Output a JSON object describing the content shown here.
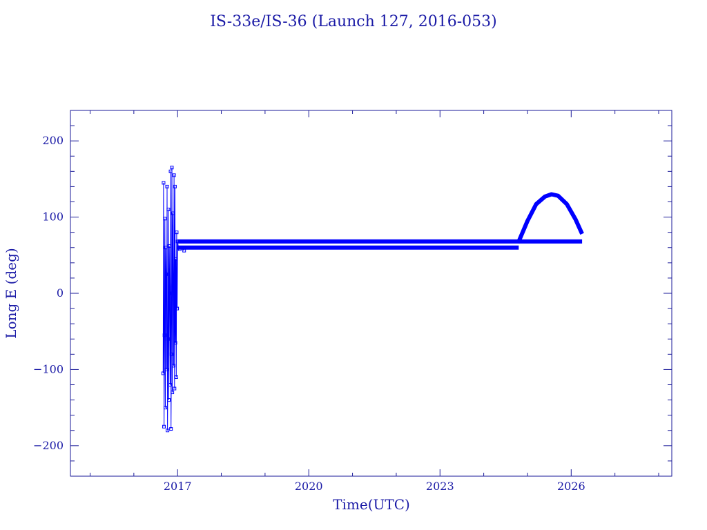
{
  "chart_data": {
    "type": "line",
    "title": "IS-33e/IS-36 (Launch 127, 2016-053)",
    "xlabel": "Time(UTC)",
    "ylabel": "Long E (deg)",
    "xlim": [
      2014.55,
      2028.3
    ],
    "ylim": [
      -240,
      240
    ],
    "x_ticks": [
      2017,
      2020,
      2023,
      2026
    ],
    "y_ticks": [
      200,
      100,
      0,
      -100,
      -200
    ],
    "grid": false,
    "legend": "none",
    "color": "#0000ff",
    "series": [
      {
        "x": [
          2016.67,
          2016.68,
          2016.69,
          2016.7,
          2016.71,
          2016.72,
          2016.73,
          2016.74,
          2016.75,
          2016.76,
          2016.77,
          2016.78,
          2016.79,
          2016.8,
          2016.81,
          2016.82,
          2016.83,
          2016.84,
          2016.85,
          2016.86,
          2016.87,
          2016.88,
          2016.89,
          2016.9,
          2016.91,
          2016.92,
          2016.93,
          2016.94,
          2016.95,
          2016.96,
          2016.97,
          2016.98,
          2016.99,
          2017.0,
          2017.02,
          2017.05,
          2017.1,
          2017.15
        ],
        "y": [
          -105,
          145,
          -175,
          -55,
          98,
          -150,
          60,
          25,
          -100,
          140,
          -180,
          -60,
          110,
          -140,
          62,
          0,
          -120,
          160,
          -178,
          -80,
          165,
          -130,
          105,
          10,
          -95,
          155,
          -125,
          140,
          -65,
          45,
          -110,
          80,
          -20,
          68,
          60,
          58,
          60,
          56
        ]
      },
      {
        "x": [
          2017.0,
          2024.8
        ],
        "y": [
          60,
          60
        ]
      },
      {
        "x": [
          2017.0,
          2024.8,
          2025.0,
          2025.2,
          2025.4,
          2025.55,
          2025.7,
          2025.9,
          2026.1,
          2026.25
        ],
        "y": [
          68,
          68,
          95,
          117,
          127,
          130,
          128,
          117,
          97,
          78
        ]
      },
      {
        "x": [
          2024.8,
          2026.25
        ],
        "y": [
          68,
          68
        ]
      }
    ]
  }
}
